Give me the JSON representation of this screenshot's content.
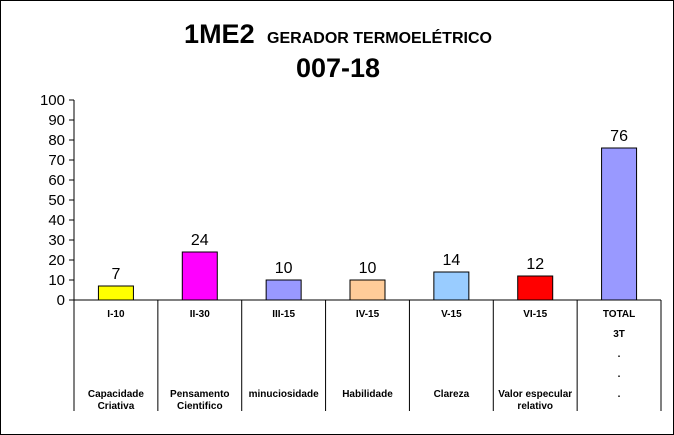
{
  "chart_data": {
    "type": "bar",
    "title": "1ME2",
    "subtitle": "GERADOR TERMOELÉTRICO",
    "subtitle2": "007-18",
    "xlabel": "",
    "ylabel": "",
    "ylim": [
      0,
      100
    ],
    "yticks": [
      "0",
      "10",
      "20",
      "30",
      "40",
      "50",
      "60",
      "70",
      "80",
      "90",
      "100"
    ],
    "grid": false,
    "legend": "none",
    "categories": [
      {
        "code": "I-10",
        "label": [
          "Capacidade",
          "Criativa"
        ],
        "value": 7,
        "color": "#FFFF00"
      },
      {
        "code": "II-30",
        "label": [
          "Pensamento",
          "Cientifico"
        ],
        "value": 24,
        "color": "#FF00FF"
      },
      {
        "code": "III-15",
        "label": [
          "minuciosidade"
        ],
        "value": 10,
        "color": "#9999FF"
      },
      {
        "code": "IV-15",
        "label": [
          "Habilidade"
        ],
        "value": 10,
        "color": "#FFCC99"
      },
      {
        "code": "V-15",
        "label": [
          "Clareza"
        ],
        "value": 14,
        "color": "#99CCFF"
      },
      {
        "code": "VI-15",
        "label": [
          "Valor especular",
          "relativo"
        ],
        "value": 12,
        "color": "#FF0000"
      },
      {
        "code": "TOTAL",
        "label": [
          "3T",
          ".",
          ".",
          "."
        ],
        "value": 76,
        "color": "#9999FF"
      }
    ]
  }
}
